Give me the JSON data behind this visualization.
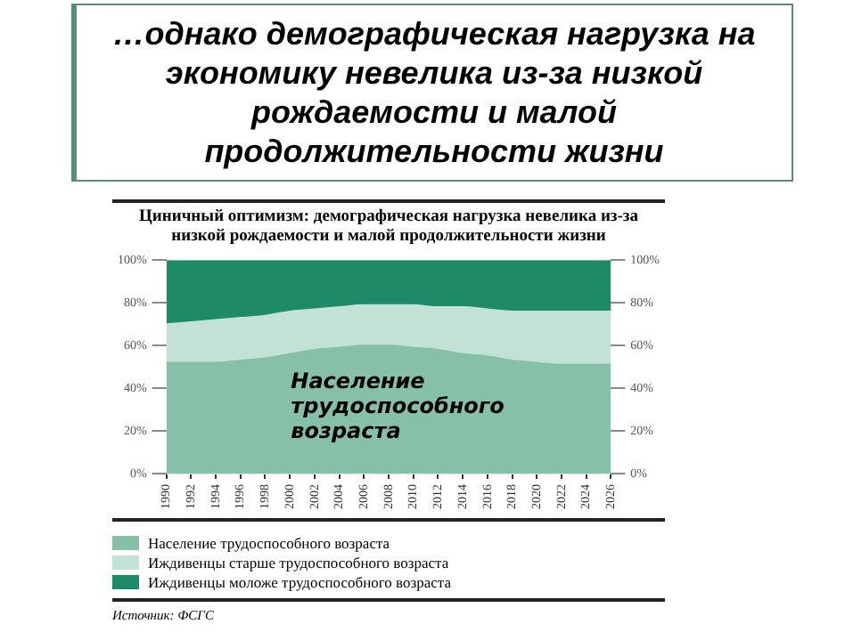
{
  "chart_data": {
    "type": "area",
    "title": "…однако демографическая нагрузка на экономику невелика из-за низкой рождаемости и малой продолжительности жизни",
    "subtitle": "Циничный оптимизм: демографическая нагрузка невелика из-за низкой рождаемости и малой продолжительности жизни",
    "categories": [
      "1990",
      "1992",
      "1994",
      "1996",
      "1998",
      "2000",
      "2002",
      "2004",
      "2006",
      "2008",
      "2010",
      "2012",
      "2014",
      "2016",
      "2018",
      "2020",
      "2022",
      "2024",
      "2026"
    ],
    "stacked": true,
    "series": [
      {
        "name": "Население трудоспособного возраста",
        "color": "#86c0a8",
        "values": [
          52,
          52,
          52,
          53,
          54,
          56,
          58,
          59,
          60,
          60,
          59,
          58,
          56,
          55,
          53,
          52,
          51,
          51,
          51
        ]
      },
      {
        "name": "Иждивенцы старше трудоспособного возраста",
        "color": "#c2e2d5",
        "values": [
          18,
          19,
          20,
          20,
          20,
          20,
          19,
          19,
          19,
          19,
          20,
          20,
          22,
          22,
          23,
          24,
          25,
          25,
          25
        ]
      },
      {
        "name": "Иждивенцы моложе трудоспособного возраста",
        "color": "#1f8a68",
        "values": [
          30,
          29,
          28,
          27,
          26,
          24,
          23,
          22,
          21,
          21,
          21,
          22,
          22,
          23,
          24,
          24,
          24,
          24,
          24
        ]
      }
    ],
    "ylim": [
      0,
      100
    ],
    "yticks": [
      {
        "value": 0,
        "label": "0%"
      },
      {
        "value": 20,
        "label": "20%"
      },
      {
        "value": 40,
        "label": "40%"
      },
      {
        "value": 60,
        "label": "60%"
      },
      {
        "value": 80,
        "label": "80%"
      },
      {
        "value": 100,
        "label": "100%"
      }
    ],
    "y2lim": [
      0,
      100
    ],
    "y2ticks": [
      {
        "value": 0,
        "label": "0%"
      },
      {
        "value": 20,
        "label": "20%"
      },
      {
        "value": 40,
        "label": "40%"
      },
      {
        "value": 60,
        "label": "60%"
      },
      {
        "value": 80,
        "label": "80%"
      },
      {
        "value": 100,
        "label": "100%"
      }
    ],
    "grid": false,
    "legend": "bottom",
    "annotations": [
      "Население трудоспособного возраста",
      "Источник: ФСГС"
    ]
  }
}
